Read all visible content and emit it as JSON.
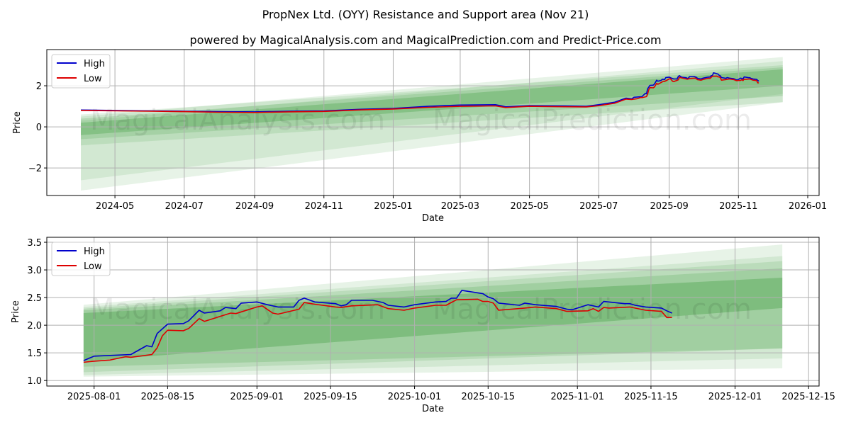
{
  "title": "PropNex Ltd. (OYY) Resistance and Support area (Nov 21)",
  "subtitle": "powered by MagicalAnalysis.com and MagicalPrediction.com and Predict-Price.com",
  "watermarks": [
    "MagicalAnalysis.com",
    "MagicalPrediction.com"
  ],
  "colors": {
    "high": "#0000cc",
    "low": "#dd0000",
    "band": "#3c9a3c"
  },
  "chart_data": [
    {
      "type": "line",
      "xlabel": "Date",
      "ylabel": "Price",
      "legend": [
        "High",
        "Low"
      ],
      "legend_position": "top-left",
      "grid": true,
      "x_ticks": [
        "2024-05",
        "2024-07",
        "2024-09",
        "2024-11",
        "2025-01",
        "2025-03",
        "2025-05",
        "2025-07",
        "2025-09",
        "2025-11",
        "2026-01"
      ],
      "y_ticks": [
        -2,
        0,
        2
      ],
      "ylim": [
        -3.34,
        3.76
      ],
      "xlim": [
        "2024-03-02",
        "2026-01-11"
      ],
      "note_series": "early history; continues with the series of chart 2 from 2025-07-30",
      "dates": [
        "2024-04-01",
        "2024-05-01",
        "2024-06-01",
        "2024-07-01",
        "2024-08-01",
        "2024-09-01",
        "2024-10-01",
        "2024-11-01",
        "2024-12-01",
        "2025-01-01",
        "2025-02-01",
        "2025-03-01",
        "2025-04-01",
        "2025-04-10",
        "2025-05-01",
        "2025-06-01",
        "2025-06-20",
        "2025-07-01",
        "2025-07-15",
        "2025-07-25"
      ],
      "high": [
        0.82,
        0.8,
        0.78,
        0.76,
        0.74,
        0.73,
        0.76,
        0.78,
        0.85,
        0.9,
        1.0,
        1.06,
        1.08,
        0.98,
        1.03,
        1.02,
        1.0,
        1.08,
        1.2,
        1.4
      ],
      "low": [
        0.8,
        0.78,
        0.76,
        0.74,
        0.71,
        0.7,
        0.73,
        0.75,
        0.82,
        0.87,
        0.95,
        1.0,
        1.02,
        0.94,
        1.0,
        0.98,
        0.97,
        1.03,
        1.15,
        1.35
      ],
      "bands": {
        "start": "2024-04-01",
        "end": "2025-12-10",
        "items": [
          {
            "start": [
              -3.1,
              0.5
            ],
            "end": [
              1.2,
              3.4
            ],
            "alpha": 0.12
          },
          {
            "start": [
              -2.6,
              0.3
            ],
            "end": [
              1.6,
              3.2
            ],
            "alpha": 0.12
          },
          {
            "start": [
              -0.9,
              0.6
            ],
            "end": [
              1.2,
              3.0
            ],
            "alpha": 0.14
          },
          {
            "start": [
              -0.6,
              0.4
            ],
            "end": [
              1.5,
              2.9
            ],
            "alpha": 0.18
          },
          {
            "start": [
              -0.4,
              0.2
            ],
            "end": [
              2.0,
              2.8
            ],
            "alpha": 0.3
          }
        ]
      }
    },
    {
      "type": "line",
      "xlabel": "Date",
      "ylabel": "Price",
      "legend": [
        "High",
        "Low"
      ],
      "legend_position": "top-left",
      "grid": true,
      "x_ticks": [
        "2025-08-01",
        "2025-08-15",
        "2025-09-01",
        "2025-09-15",
        "2025-10-01",
        "2025-10-15",
        "2025-11-01",
        "2025-11-15",
        "2025-12-01",
        "2025-12-15"
      ],
      "y_ticks": [
        1.0,
        1.5,
        2.0,
        2.5,
        3.0,
        3.5
      ],
      "ylim": [
        0.9,
        3.59
      ],
      "xlim": [
        "2025-07-23",
        "2025-12-17"
      ],
      "high_series": [
        [
          "2025-07-30",
          1.36
        ],
        [
          "2025-08-01",
          1.44
        ],
        [
          "2025-08-08",
          1.47
        ],
        [
          "2025-08-11",
          1.63
        ],
        [
          "2025-08-12",
          1.61
        ],
        [
          "2025-08-13",
          1.85
        ],
        [
          "2025-08-15",
          2.02
        ],
        [
          "2025-08-18",
          2.03
        ],
        [
          "2025-08-19",
          2.08
        ],
        [
          "2025-08-21",
          2.27
        ],
        [
          "2025-08-22",
          2.22
        ],
        [
          "2025-08-25",
          2.26
        ],
        [
          "2025-08-26",
          2.32
        ],
        [
          "2025-08-28",
          2.3
        ],
        [
          "2025-08-29",
          2.4
        ],
        [
          "2025-09-01",
          2.42
        ],
        [
          "2025-09-03",
          2.37
        ],
        [
          "2025-09-05",
          2.33
        ],
        [
          "2025-09-08",
          2.33
        ],
        [
          "2025-09-09",
          2.45
        ],
        [
          "2025-09-10",
          2.49
        ],
        [
          "2025-09-12",
          2.42
        ],
        [
          "2025-09-16",
          2.39
        ],
        [
          "2025-09-17",
          2.35
        ],
        [
          "2025-09-18",
          2.37
        ],
        [
          "2025-09-19",
          2.45
        ],
        [
          "2025-09-23",
          2.45
        ],
        [
          "2025-09-25",
          2.41
        ],
        [
          "2025-09-26",
          2.36
        ],
        [
          "2025-09-29",
          2.33
        ],
        [
          "2025-10-01",
          2.37
        ],
        [
          "2025-10-05",
          2.42
        ],
        [
          "2025-10-07",
          2.43
        ],
        [
          "2025-10-08",
          2.49
        ],
        [
          "2025-10-09",
          2.49
        ],
        [
          "2025-10-10",
          2.63
        ],
        [
          "2025-10-14",
          2.57
        ],
        [
          "2025-10-15",
          2.51
        ],
        [
          "2025-10-16",
          2.48
        ],
        [
          "2025-10-17",
          2.4
        ],
        [
          "2025-10-21",
          2.36
        ],
        [
          "2025-10-22",
          2.4
        ],
        [
          "2025-10-24",
          2.37
        ],
        [
          "2025-10-28",
          2.34
        ],
        [
          "2025-10-30",
          2.29
        ],
        [
          "2025-10-31",
          2.28
        ],
        [
          "2025-11-03",
          2.37
        ],
        [
          "2025-11-05",
          2.33
        ],
        [
          "2025-11-06",
          2.43
        ],
        [
          "2025-11-10",
          2.39
        ],
        [
          "2025-11-11",
          2.39
        ],
        [
          "2025-11-12",
          2.36
        ],
        [
          "2025-11-14",
          2.33
        ],
        [
          "2025-11-17",
          2.31
        ],
        [
          "2025-11-18",
          2.26
        ],
        [
          "2025-11-19",
          2.22
        ]
      ],
      "low_series": [
        [
          "2025-07-30",
          1.33
        ],
        [
          "2025-08-01",
          1.35
        ],
        [
          "2025-08-04",
          1.37
        ],
        [
          "2025-08-07",
          1.43
        ],
        [
          "2025-08-08",
          1.42
        ],
        [
          "2025-08-12",
          1.47
        ],
        [
          "2025-08-13",
          1.59
        ],
        [
          "2025-08-14",
          1.81
        ],
        [
          "2025-08-15",
          1.91
        ],
        [
          "2025-08-18",
          1.9
        ],
        [
          "2025-08-19",
          1.94
        ],
        [
          "2025-08-21",
          2.12
        ],
        [
          "2025-08-22",
          2.07
        ],
        [
          "2025-08-25",
          2.16
        ],
        [
          "2025-08-27",
          2.22
        ],
        [
          "2025-08-28",
          2.21
        ],
        [
          "2025-09-01",
          2.33
        ],
        [
          "2025-09-02",
          2.35
        ],
        [
          "2025-09-04",
          2.22
        ],
        [
          "2025-09-05",
          2.2
        ],
        [
          "2025-09-09",
          2.29
        ],
        [
          "2025-09-10",
          2.41
        ],
        [
          "2025-09-12",
          2.38
        ],
        [
          "2025-09-16",
          2.33
        ],
        [
          "2025-09-17",
          2.32
        ],
        [
          "2025-09-19",
          2.35
        ],
        [
          "2025-09-24",
          2.37
        ],
        [
          "2025-09-26",
          2.3
        ],
        [
          "2025-09-29",
          2.27
        ],
        [
          "2025-10-01",
          2.31
        ],
        [
          "2025-10-05",
          2.36
        ],
        [
          "2025-10-07",
          2.36
        ],
        [
          "2025-10-09",
          2.46
        ],
        [
          "2025-10-13",
          2.47
        ],
        [
          "2025-10-14",
          2.43
        ],
        [
          "2025-10-15",
          2.43
        ],
        [
          "2025-10-16",
          2.4
        ],
        [
          "2025-10-17",
          2.27
        ],
        [
          "2025-10-22",
          2.31
        ],
        [
          "2025-10-24",
          2.33
        ],
        [
          "2025-10-28",
          2.3
        ],
        [
          "2025-10-30",
          2.25
        ],
        [
          "2025-11-03",
          2.26
        ],
        [
          "2025-11-04",
          2.3
        ],
        [
          "2025-11-05",
          2.25
        ],
        [
          "2025-11-06",
          2.32
        ],
        [
          "2025-11-07",
          2.31
        ],
        [
          "2025-11-11",
          2.33
        ],
        [
          "2025-11-14",
          2.27
        ],
        [
          "2025-11-17",
          2.25
        ],
        [
          "2025-11-18",
          2.14
        ],
        [
          "2025-11-19",
          2.14
        ]
      ],
      "bands": {
        "start": "2025-07-30",
        "end": "2025-12-10",
        "items": [
          {
            "start": [
              1.07,
              2.37
            ],
            "end": [
              1.22,
              3.46
            ],
            "alpha": 0.12
          },
          {
            "start": [
              1.1,
              2.33
            ],
            "end": [
              1.4,
              3.25
            ],
            "alpha": 0.12
          },
          {
            "start": [
              1.15,
              2.3
            ],
            "end": [
              1.58,
              3.16
            ],
            "alpha": 0.15
          },
          {
            "start": [
              1.25,
              2.27
            ],
            "end": [
              1.58,
              3.03
            ],
            "alpha": 0.2
          },
          {
            "start": [
              1.35,
              2.22
            ],
            "end": [
              2.31,
              2.86
            ],
            "alpha": 0.35
          }
        ]
      }
    }
  ]
}
